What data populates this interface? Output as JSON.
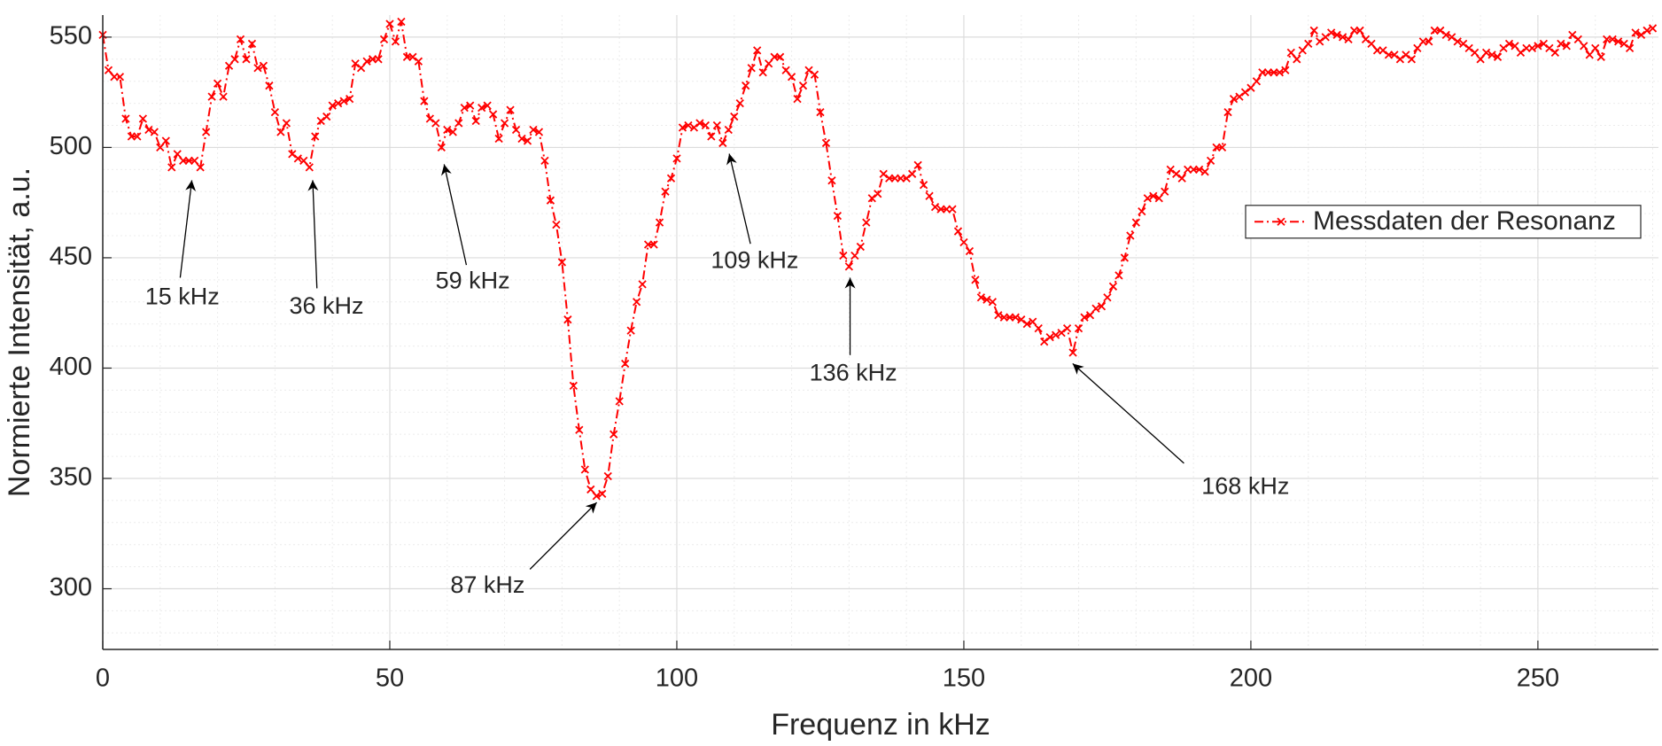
{
  "chart_data": {
    "type": "line",
    "xlabel": "Frequenz in kHz",
    "ylabel": "Normierte Intensität, a.u.",
    "xlim": [
      0,
      271
    ],
    "ylim": [
      272.5,
      560
    ],
    "xticks": [
      0,
      50,
      100,
      150,
      200,
      250
    ],
    "yticks": [
      300,
      350,
      400,
      450,
      500,
      550
    ],
    "grid": true,
    "minor_grid": true,
    "legend": "right",
    "x": [
      0,
      1,
      2,
      3,
      4,
      5,
      6,
      7,
      8,
      9,
      10,
      11,
      12,
      13,
      14,
      15,
      16,
      17,
      18,
      19,
      20,
      21,
      22,
      23,
      24,
      25,
      26,
      27,
      28,
      29,
      30,
      31,
      32,
      33,
      34,
      35,
      36,
      37,
      38,
      39,
      40,
      41,
      42,
      43,
      44,
      45,
      46,
      47,
      48,
      49,
      50,
      51,
      52,
      53,
      54,
      55,
      56,
      57,
      58,
      59,
      60,
      61,
      62,
      63,
      64,
      65,
      66,
      67,
      68,
      69,
      70,
      71,
      72,
      73,
      74,
      75,
      76,
      77,
      78,
      79,
      80,
      81,
      82,
      83,
      84,
      85,
      86,
      87,
      88,
      89,
      90,
      91,
      92,
      93,
      94,
      95,
      96,
      97,
      98,
      99,
      100,
      101,
      102,
      103,
      104,
      105,
      106,
      107,
      108,
      109,
      110,
      111,
      112,
      113,
      114,
      115,
      116,
      117,
      118,
      119,
      120,
      121,
      122,
      123,
      124,
      125,
      126,
      127,
      128,
      129,
      130,
      131,
      132,
      133,
      134,
      135,
      136,
      137,
      138,
      139,
      140,
      141,
      142,
      143,
      144,
      145,
      146,
      147,
      148,
      149,
      150,
      151,
      152,
      153,
      154,
      155,
      156,
      157,
      158,
      159,
      160,
      161,
      162,
      163,
      164,
      165,
      166,
      167,
      168,
      169,
      170,
      171,
      172,
      173,
      174,
      175,
      176,
      177,
      178,
      179,
      180,
      181,
      182,
      183,
      184,
      185,
      186,
      187,
      188,
      189,
      190,
      191,
      192,
      193,
      194,
      195,
      196,
      197,
      198,
      199,
      200,
      201,
      202,
      203,
      204,
      205,
      206,
      207,
      208,
      209,
      210,
      211,
      212,
      213,
      214,
      215,
      216,
      217,
      218,
      219,
      220,
      221,
      222,
      223,
      224,
      225,
      226,
      227,
      228,
      229,
      230,
      231,
      232,
      233,
      234,
      235,
      236,
      237,
      238,
      239,
      240,
      241,
      242,
      243,
      244,
      245,
      246,
      247,
      248,
      249,
      250,
      251,
      252,
      253,
      254,
      255,
      256,
      257,
      258,
      259,
      260,
      261,
      262,
      263,
      264,
      265,
      266,
      267,
      268,
      269,
      270
    ],
    "series": [
      {
        "name": "Messdaten der Resonanz",
        "color": "#ff0000",
        "values": [
          551,
          535,
          532,
          532,
          513,
          505,
          505,
          513,
          508,
          507,
          500,
          503,
          491,
          497,
          494,
          494,
          494,
          491,
          507,
          523,
          529,
          523,
          537,
          540,
          549,
          540,
          547,
          536,
          537,
          528,
          516,
          507,
          511,
          497,
          495,
          494,
          491,
          505,
          512,
          514,
          519,
          520,
          521,
          522,
          538,
          536,
          539,
          540,
          540,
          549,
          556,
          548,
          557,
          541,
          541,
          539,
          521,
          513,
          511,
          500,
          508,
          507,
          511,
          518,
          519,
          512,
          518,
          519,
          515,
          504,
          511,
          517,
          508,
          504,
          503,
          508,
          507,
          494,
          476,
          465,
          448,
          422,
          392,
          372,
          354,
          345,
          342,
          343,
          351,
          370,
          385,
          402,
          417,
          430,
          438,
          456,
          456,
          466,
          480,
          486,
          495,
          509,
          510,
          509,
          511,
          510,
          505,
          510,
          502,
          508,
          514,
          520,
          528,
          536,
          544,
          534,
          538,
          541,
          541,
          535,
          532,
          522,
          528,
          535,
          533,
          516,
          502,
          485,
          469,
          451,
          446,
          451,
          455,
          466,
          477,
          479,
          488,
          486,
          486,
          486,
          486,
          488,
          492,
          483,
          478,
          473,
          472,
          472,
          472,
          462,
          457,
          453,
          440,
          432,
          431,
          430,
          424,
          423,
          423,
          423,
          422,
          420,
          421,
          418,
          412,
          414,
          415,
          416,
          418,
          407,
          418,
          423,
          424,
          427,
          428,
          432,
          437,
          442,
          450,
          460,
          466,
          471,
          477,
          478,
          477,
          480,
          490,
          488,
          486,
          490,
          490,
          490,
          489,
          494,
          500,
          500,
          516,
          522,
          523,
          525,
          527,
          530,
          534,
          534,
          534,
          534,
          535,
          543,
          540,
          544,
          547,
          553,
          548,
          550,
          552,
          551,
          550,
          549,
          553,
          553,
          549,
          547,
          544,
          544,
          542,
          542,
          540,
          542,
          540,
          545,
          548,
          548,
          553,
          553,
          551,
          550,
          548,
          547,
          545,
          543,
          540,
          543,
          542,
          541,
          545,
          547,
          546,
          543,
          545,
          545,
          546,
          547,
          545,
          543,
          547,
          546,
          551,
          549,
          546,
          542,
          545,
          541,
          549,
          549,
          548,
          547,
          545,
          552,
          551,
          553,
          554
        ]
      }
    ],
    "annotations": [
      "15 kHz",
      "36 kHz",
      "59 kHz",
      "87 kHz",
      "109 kHz",
      "136 kHz",
      "168 kHz"
    ]
  }
}
